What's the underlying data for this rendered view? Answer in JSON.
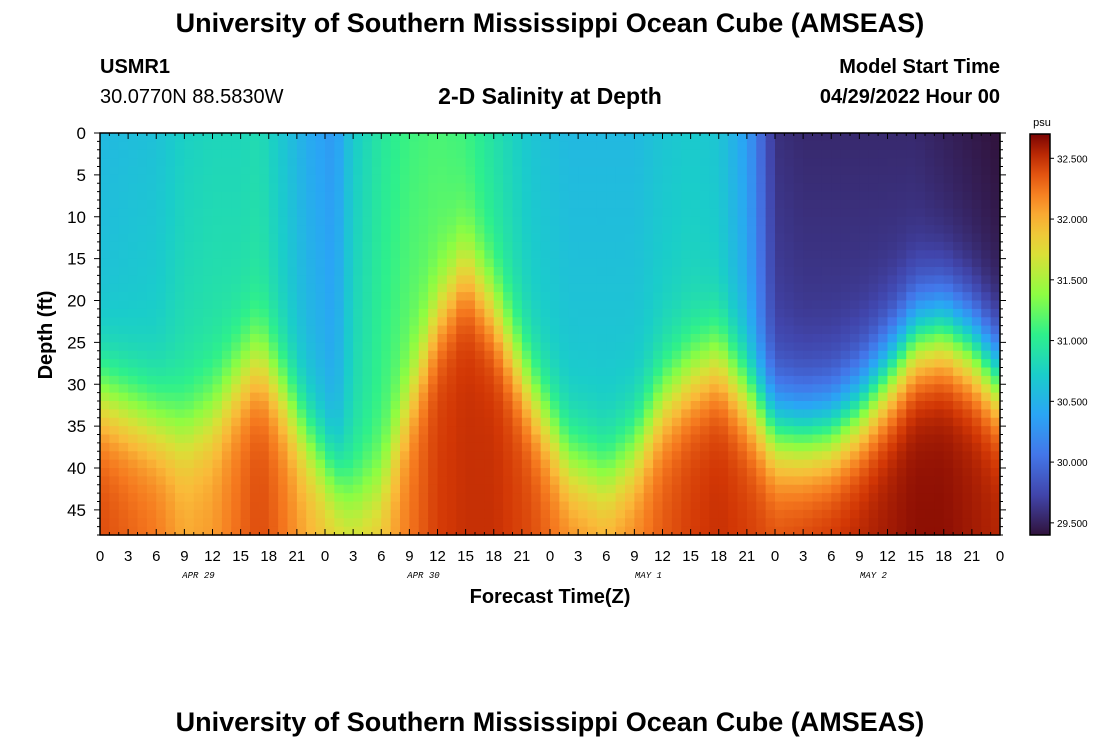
{
  "header": {
    "title": "University of Southern Mississippi Ocean Cube (AMSEAS)",
    "station_id": "USMR1",
    "station_coords": "30.0770N  88.5830W",
    "plot_title": "2-D Salinity at Depth",
    "start_label": "Model Start Time",
    "start_value": "04/29/2022 Hour 00"
  },
  "footer": {
    "title": "University of Southern Mississippi Ocean Cube (AMSEAS)"
  },
  "chart_data": {
    "type": "heatmap",
    "title": "2-D Salinity at Depth",
    "xlabel": "Forecast Time(Z)",
    "ylabel": "Depth (ft)",
    "x_range_hours": [
      0,
      96
    ],
    "x_tick_labels": [
      "0",
      "3",
      "6",
      "9",
      "12",
      "15",
      "18",
      "21",
      "0",
      "3",
      "6",
      "9",
      "12",
      "15",
      "18",
      "21",
      "0",
      "3",
      "6",
      "9",
      "12",
      "15",
      "18",
      "21",
      "0",
      "3",
      "6",
      "9",
      "12",
      "15",
      "18",
      "21",
      "0"
    ],
    "day_labels": [
      {
        "label": "APR 29",
        "hour": 10.5
      },
      {
        "label": "APR 30",
        "hour": 34.5
      },
      {
        "label": "MAY 1",
        "hour": 58.5
      },
      {
        "label": "MAY 2",
        "hour": 82.5
      }
    ],
    "y_range_ft": [
      0,
      48
    ],
    "y_tick_labels": [
      "0",
      "5",
      "10",
      "15",
      "20",
      "25",
      "30",
      "35",
      "40",
      "45"
    ],
    "colorbar": {
      "unit": "psu",
      "min": 29.4,
      "max": 32.7,
      "tick_labels": [
        "32.500",
        "32.000",
        "31.500",
        "31.000",
        "30.500",
        "30.000",
        "29.500"
      ]
    },
    "field": {
      "description": "salinity in psu; each profile has a surface value, a halocline depth (ft) and a bottom value",
      "time_hours": [
        0,
        6,
        9,
        12,
        15,
        17,
        19,
        22,
        25,
        27,
        30,
        33,
        36,
        39,
        42,
        46,
        50,
        54,
        57,
        60,
        63,
        66,
        69,
        72,
        75,
        78,
        81,
        84,
        87,
        90,
        93,
        96
      ],
      "surface_psu": [
        30.55,
        30.62,
        30.75,
        30.8,
        30.8,
        30.85,
        30.7,
        30.45,
        30.3,
        30.7,
        30.95,
        31.1,
        31.15,
        31.1,
        30.9,
        30.65,
        30.55,
        30.55,
        30.55,
        30.65,
        30.7,
        30.65,
        30.35,
        29.6,
        29.55,
        29.55,
        29.55,
        29.55,
        29.55,
        29.5,
        29.45,
        29.4
      ],
      "halocline_depth_ft": [
        31.5,
        34.5,
        35.5,
        33.5,
        29.0,
        27.0,
        30.0,
        36.0,
        41.0,
        43.5,
        42.0,
        32.0,
        22.0,
        16.0,
        21.0,
        31.0,
        39.0,
        41.0,
        38.0,
        32.0,
        29.0,
        27.0,
        31.0,
        35.5,
        36.0,
        35.5,
        33.0,
        29.0,
        24.5,
        23.5,
        25.5,
        29.5
      ],
      "bottom_psu": [
        32.4,
        32.25,
        32.05,
        32.1,
        32.3,
        32.4,
        32.3,
        32.05,
        31.9,
        31.85,
        31.95,
        32.25,
        32.45,
        32.5,
        32.5,
        32.4,
        32.2,
        32.1,
        32.2,
        32.35,
        32.45,
        32.5,
        32.45,
        32.4,
        32.45,
        32.5,
        32.55,
        32.6,
        32.65,
        32.65,
        32.6,
        32.55
      ]
    }
  }
}
